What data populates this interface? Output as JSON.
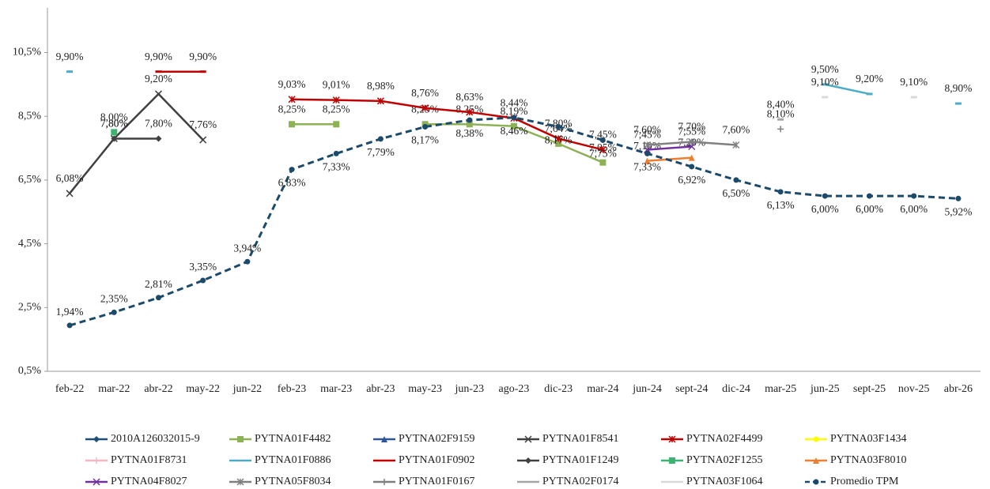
{
  "chart_data": {
    "type": "line",
    "categories": [
      "feb-22",
      "mar-22",
      "abr-22",
      "may-22",
      "jun-22",
      "feb-23",
      "mar-23",
      "abr-23",
      "may-23",
      "jun-23",
      "ago-23",
      "dic-23",
      "mar-24",
      "jun-24",
      "sept-24",
      "dic-24",
      "mar-25",
      "jun-25",
      "sept-25",
      "nov-25",
      "abr-26"
    ],
    "ylim": [
      0.5,
      11.9
    ],
    "yticks": [
      {
        "value": 0.5,
        "label": "0,5%"
      },
      {
        "value": 2.5,
        "label": "2,5%"
      },
      {
        "value": 4.5,
        "label": "4,5%"
      },
      {
        "value": 6.5,
        "label": "6,5%"
      },
      {
        "value": 8.5,
        "label": "8,5%"
      },
      {
        "value": 10.5,
        "label": "10,5%"
      }
    ],
    "grid": false,
    "legend": "bottom",
    "series": [
      {
        "name": "2010A126032015-9",
        "color": "#1f4e79",
        "marker": "diamond",
        "values": [
          null,
          null,
          null,
          null,
          null,
          null,
          null,
          null,
          null,
          null,
          null,
          null,
          null,
          null,
          null,
          null,
          null,
          null,
          null,
          null,
          null
        ]
      },
      {
        "name": "PYTNA01F4482",
        "color": "#8db255",
        "marker": "square",
        "values": [
          null,
          null,
          null,
          null,
          null,
          8.25,
          8.25,
          null,
          8.25,
          8.25,
          8.19,
          7.64,
          7.05,
          null,
          null,
          null,
          null,
          null,
          null,
          null,
          null
        ],
        "value_labels": [
          null,
          null,
          null,
          null,
          null,
          "8,25%",
          "8,25%",
          null,
          "8,25%",
          "8,25%",
          "8,19%",
          "7,64%",
          "7,05%",
          null,
          null,
          null,
          null,
          null,
          null,
          null,
          null
        ]
      },
      {
        "name": "PYTNA02F9159",
        "color": "#2f5597",
        "marker": "triangle",
        "values": [
          null,
          null,
          null,
          null,
          null,
          null,
          null,
          null,
          null,
          null,
          null,
          null,
          null,
          null,
          null,
          null,
          null,
          null,
          null,
          null,
          null
        ]
      },
      {
        "name": "PYTNA01F8541",
        "color": "#404040",
        "marker": "x",
        "values": [
          6.08,
          7.8,
          9.2,
          7.76,
          null,
          null,
          null,
          null,
          null,
          null,
          null,
          null,
          null,
          null,
          null,
          null,
          null,
          null,
          null,
          null,
          null
        ],
        "value_labels": [
          "6,08%",
          "7,80%",
          "9,20%",
          "7,76%",
          null,
          null,
          null,
          null,
          null,
          null,
          null,
          null,
          null,
          null,
          null,
          null,
          null,
          null,
          null,
          null,
          null
        ]
      },
      {
        "name": "PYTNA02F4499",
        "color": "#c00000",
        "marker": "star",
        "values": [
          null,
          null,
          null,
          null,
          null,
          9.03,
          9.01,
          8.98,
          8.76,
          8.63,
          8.44,
          7.8,
          7.45,
          null,
          null,
          null,
          null,
          null,
          null,
          null,
          null
        ],
        "value_labels": [
          null,
          null,
          null,
          null,
          null,
          "9,03%",
          "9,01%",
          "8,98%",
          "8,76%",
          "8,63%",
          "8,44%",
          "7,80%",
          "7,45%",
          null,
          null,
          null,
          null,
          null,
          null,
          null,
          null
        ]
      },
      {
        "name": "PYTNA03F1434",
        "color": "#ffff00",
        "marker": "circle",
        "values": [
          null,
          null,
          null,
          null,
          null,
          null,
          null,
          null,
          null,
          null,
          null,
          null,
          null,
          null,
          null,
          null,
          null,
          null,
          null,
          null,
          null
        ]
      },
      {
        "name": "PYTNA01F8731",
        "color": "#f4b6c2",
        "marker": "plus",
        "values": [
          null,
          null,
          null,
          null,
          null,
          null,
          null,
          null,
          null,
          null,
          null,
          null,
          null,
          null,
          null,
          null,
          null,
          null,
          null,
          null,
          null
        ]
      },
      {
        "name": "PYTNA01F0886",
        "color": "#4bacc6",
        "marker": "none",
        "values": [
          9.9,
          null,
          null,
          null,
          null,
          null,
          null,
          null,
          null,
          null,
          null,
          null,
          null,
          null,
          null,
          null,
          null,
          9.5,
          9.2,
          null,
          8.9
        ],
        "value_labels": [
          "9,90%",
          null,
          null,
          null,
          null,
          null,
          null,
          null,
          null,
          null,
          null,
          null,
          null,
          null,
          null,
          null,
          null,
          "9,50%",
          "9,20%",
          null,
          "8,90%"
        ]
      },
      {
        "name": "PYTNA01F0902",
        "color": "#c00000",
        "marker": "none",
        "values": [
          null,
          null,
          9.9,
          9.9,
          null,
          null,
          null,
          null,
          null,
          null,
          null,
          null,
          null,
          null,
          null,
          null,
          null,
          null,
          null,
          null,
          null
        ],
        "value_labels": [
          null,
          null,
          "9,90%",
          "9,90%",
          null,
          null,
          null,
          null,
          null,
          null,
          null,
          null,
          null,
          null,
          null,
          null,
          null,
          null,
          null,
          null,
          null
        ]
      },
      {
        "name": "PYTNA01F1249",
        "color": "#404040",
        "marker": "diamond",
        "values": [
          null,
          7.8,
          7.8,
          null,
          null,
          null,
          null,
          null,
          null,
          null,
          null,
          null,
          null,
          null,
          null,
          null,
          null,
          null,
          null,
          null,
          null
        ],
        "value_labels": [
          null,
          "7,80%",
          "7,80%",
          null,
          null,
          null,
          null,
          null,
          null,
          null,
          null,
          null,
          null,
          null,
          null,
          null,
          null,
          null,
          null,
          null,
          null
        ]
      },
      {
        "name": "PYTNA02F1255",
        "color": "#3cb371",
        "marker": "square",
        "values": [
          null,
          8.0,
          null,
          null,
          null,
          null,
          null,
          null,
          null,
          null,
          null,
          null,
          null,
          null,
          null,
          null,
          null,
          null,
          null,
          null,
          null
        ],
        "value_labels": [
          null,
          "8,00%",
          null,
          null,
          null,
          null,
          null,
          null,
          null,
          null,
          null,
          null,
          null,
          null,
          null,
          null,
          null,
          null,
          null,
          null,
          null
        ]
      },
      {
        "name": "PYTNA03F8010",
        "color": "#ed7d31",
        "marker": "triangle",
        "values": [
          null,
          null,
          null,
          null,
          null,
          null,
          null,
          null,
          null,
          null,
          null,
          null,
          null,
          7.1,
          7.2,
          null,
          null,
          null,
          null,
          null,
          null
        ],
        "value_labels": [
          null,
          null,
          null,
          null,
          null,
          null,
          null,
          null,
          null,
          null,
          null,
          null,
          null,
          "7,10%",
          "7,20%",
          null,
          null,
          null,
          null,
          null,
          null
        ]
      },
      {
        "name": "PYTNA04F8027",
        "color": "#7030a0",
        "marker": "x",
        "values": [
          null,
          null,
          null,
          null,
          null,
          null,
          null,
          null,
          null,
          null,
          null,
          null,
          null,
          7.45,
          7.55,
          null,
          null,
          null,
          null,
          null,
          null
        ],
        "value_labels": [
          null,
          null,
          null,
          null,
          null,
          null,
          null,
          null,
          null,
          null,
          null,
          null,
          null,
          "7,45%",
          "7,55%",
          null,
          null,
          null,
          null,
          null,
          null
        ]
      },
      {
        "name": "PYTNA05F8034",
        "color": "#808080",
        "marker": "star",
        "values": [
          null,
          null,
          null,
          null,
          null,
          null,
          null,
          null,
          null,
          null,
          null,
          null,
          null,
          7.6,
          7.7,
          7.6,
          null,
          null,
          null,
          null,
          null
        ],
        "value_labels": [
          null,
          null,
          null,
          null,
          null,
          null,
          null,
          null,
          null,
          null,
          null,
          null,
          null,
          "7,60%",
          "7,70%",
          "7,60%",
          null,
          null,
          null,
          null,
          null
        ]
      },
      {
        "name": "PYTNA01F0167",
        "color": "#7f7f7f",
        "marker": "plus",
        "values": [
          null,
          null,
          null,
          null,
          null,
          null,
          null,
          null,
          null,
          null,
          null,
          null,
          null,
          null,
          null,
          null,
          8.1,
          null,
          null,
          null,
          null
        ],
        "value_labels": [
          null,
          null,
          null,
          null,
          null,
          null,
          null,
          null,
          null,
          null,
          null,
          null,
          null,
          null,
          null,
          null,
          "8,10%",
          null,
          null,
          null,
          null
        ]
      },
      {
        "name": "PYTNA02F0174",
        "color": "#a5a5a5",
        "marker": "none",
        "values": [
          null,
          null,
          null,
          null,
          null,
          null,
          null,
          null,
          null,
          null,
          null,
          null,
          null,
          null,
          null,
          null,
          8.4,
          null,
          null,
          null,
          null
        ],
        "value_labels": [
          null,
          null,
          null,
          null,
          null,
          null,
          null,
          null,
          null,
          null,
          null,
          null,
          null,
          null,
          null,
          null,
          "8,40%",
          null,
          null,
          null,
          null
        ]
      },
      {
        "name": "PYTNA03F1064",
        "color": "#d9d9d9",
        "marker": "none",
        "values": [
          null,
          null,
          null,
          null,
          null,
          null,
          null,
          null,
          null,
          null,
          null,
          null,
          null,
          null,
          null,
          null,
          null,
          9.1,
          null,
          9.1,
          null
        ],
        "value_labels": [
          null,
          null,
          null,
          null,
          null,
          null,
          null,
          null,
          null,
          null,
          null,
          null,
          null,
          null,
          null,
          null,
          null,
          "9,10%",
          null,
          "9,10%",
          null
        ]
      },
      {
        "name": "Promedio TPM",
        "color": "#1b4a6b",
        "marker": "circle",
        "dash": true,
        "values": [
          1.94,
          2.35,
          2.81,
          3.35,
          3.94,
          6.83,
          7.33,
          7.79,
          8.17,
          8.38,
          8.46,
          8.17,
          7.75,
          7.33,
          6.92,
          6.5,
          6.13,
          6.0,
          6.0,
          6.0,
          5.92
        ],
        "value_labels": [
          "1,94%",
          "2,35%",
          "2,81%",
          "3,35%",
          "3,94%",
          "6,83%",
          "7,33%",
          "7,79%",
          "8,17%",
          "8,38%",
          "8,46%",
          "8,17%",
          "7,75%",
          "7,33%",
          "6,92%",
          "6,50%",
          "6,13%",
          "6,00%",
          "6,00%",
          "6,00%",
          "5,92%"
        ]
      }
    ]
  }
}
